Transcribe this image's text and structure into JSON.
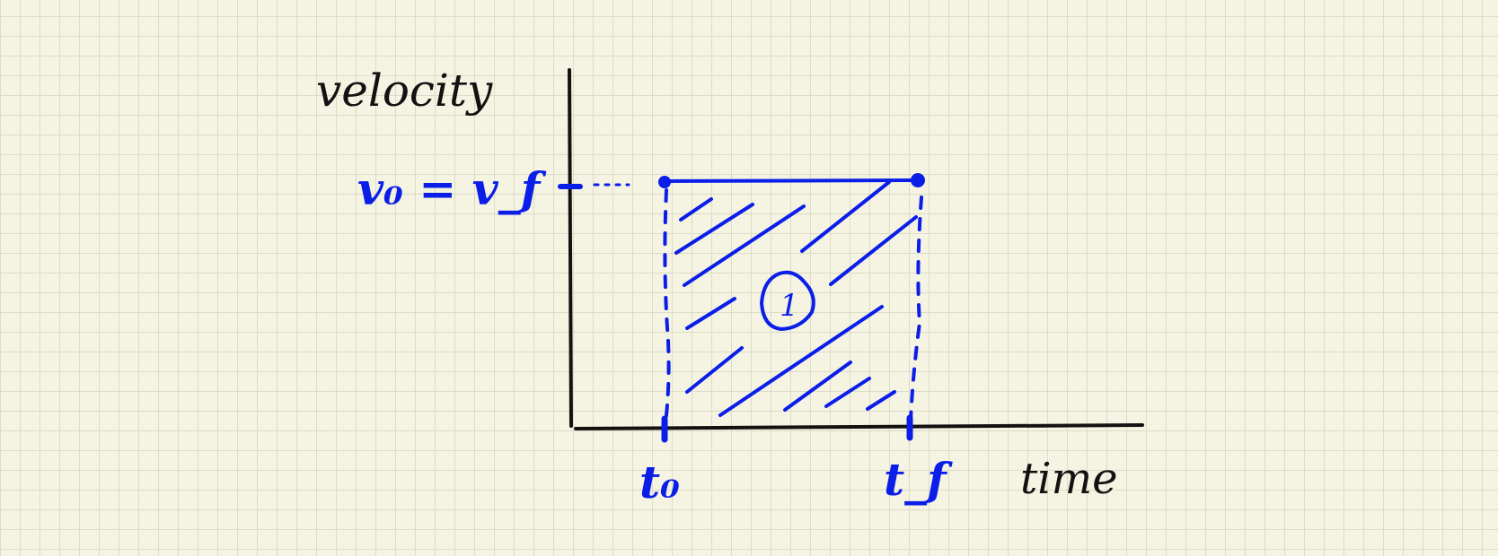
{
  "diagram": {
    "y_axis_label": "velocity",
    "x_axis_label": "time",
    "velocity_label": "v₀ = v_f",
    "t_start_label": "t₀",
    "t_end_label": "t_f",
    "region_label": "1",
    "colors": {
      "ink": "#121212",
      "accent": "#0a1ee8",
      "paper": "#f5f3e2",
      "grid": "#dcdcc8"
    }
  }
}
